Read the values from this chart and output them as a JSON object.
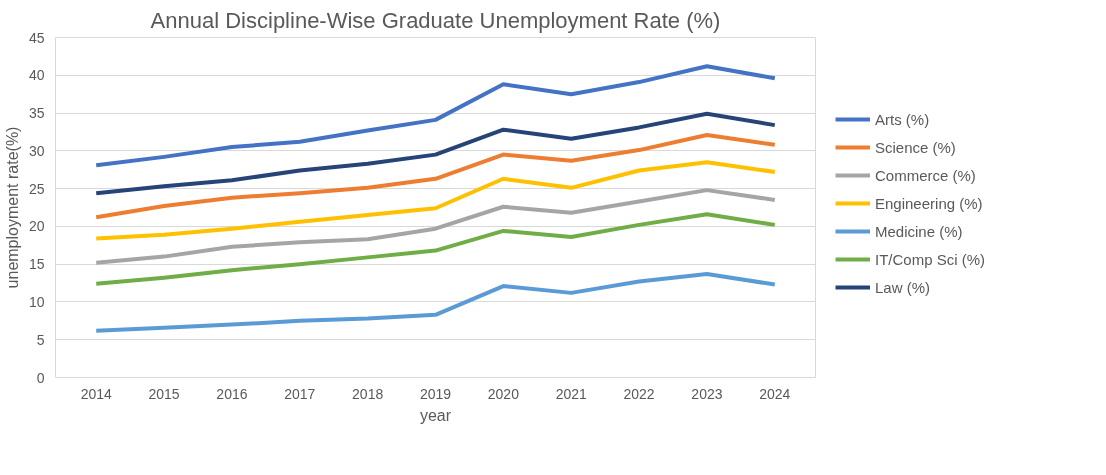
{
  "chart_data": {
    "type": "line",
    "title": "Annual Discipline-Wise Graduate Unemployment Rate (%)",
    "xlabel": "year",
    "ylabel": "unemployment rate(%)",
    "categories": [
      "2014",
      "2015",
      "2016",
      "2017",
      "2018",
      "2019",
      "2020",
      "2021",
      "2022",
      "2023",
      "2024"
    ],
    "ylim": [
      0,
      45
    ],
    "yticks": [
      0,
      5,
      10,
      15,
      20,
      25,
      30,
      35,
      40,
      45
    ],
    "grid": "y",
    "legend": "right",
    "marker": "none",
    "line_style": "solid",
    "series": [
      {
        "name": "Arts (%)",
        "color": "#4472c4",
        "values": [
          28.1,
          29.2,
          30.5,
          31.2,
          32.7,
          34.1,
          38.8,
          37.5,
          39.1,
          41.2,
          39.6
        ]
      },
      {
        "name": "Science (%)",
        "color": "#ed7d31",
        "values": [
          21.2,
          22.7,
          23.8,
          24.4,
          25.1,
          26.3,
          29.5,
          28.7,
          30.1,
          32.1,
          30.8
        ]
      },
      {
        "name": "Commerce (%)",
        "color": "#a5a5a5",
        "values": [
          15.2,
          16.0,
          17.3,
          17.9,
          18.3,
          19.7,
          22.6,
          21.8,
          23.3,
          24.8,
          23.5
        ]
      },
      {
        "name": "Engineering (%)",
        "color": "#ffc000",
        "values": [
          18.4,
          18.9,
          19.7,
          20.6,
          21.5,
          22.4,
          26.3,
          25.1,
          27.4,
          28.5,
          27.2
        ]
      },
      {
        "name": "Medicine (%)",
        "color": "#5b9bd5",
        "values": [
          6.2,
          6.6,
          7.0,
          7.5,
          7.8,
          8.3,
          12.1,
          11.2,
          12.7,
          13.7,
          12.3
        ]
      },
      {
        "name": "IT/Comp Sci (%)",
        "color": "#70ad47",
        "values": [
          12.4,
          13.2,
          14.2,
          15.0,
          15.9,
          16.8,
          19.4,
          18.6,
          20.2,
          21.6,
          20.2
        ]
      },
      {
        "name": "Law (%)",
        "color": "#264478",
        "values": [
          24.4,
          25.3,
          26.1,
          27.4,
          28.3,
          29.5,
          32.8,
          31.6,
          33.1,
          34.9,
          33.4
        ]
      }
    ]
  }
}
